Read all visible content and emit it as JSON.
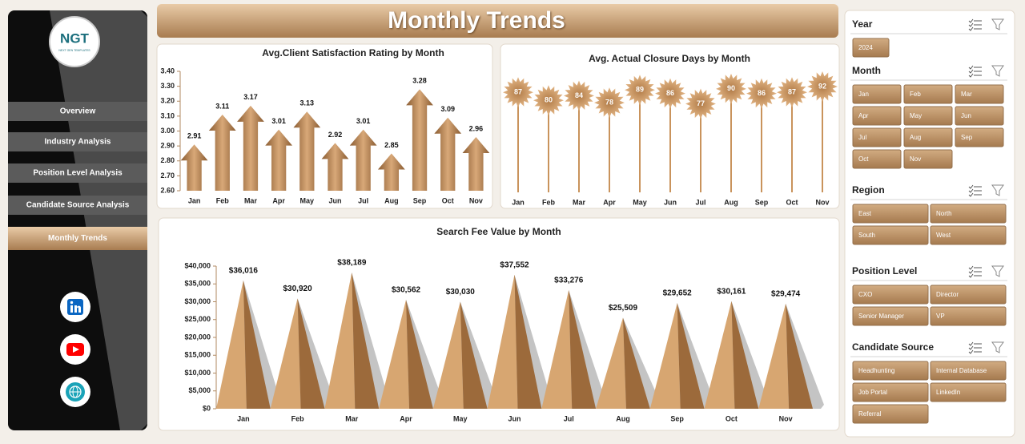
{
  "header": {
    "title": "Monthly Trends"
  },
  "logo": {
    "name": "NGT",
    "tagline": "NEXT GEN TEMPLATES"
  },
  "nav": [
    "Overview",
    "Industry Analysis",
    "Position Level Analysis",
    "Candidate Source Analysis",
    "Monthly Trends"
  ],
  "active_nav": 4,
  "slicers": [
    {
      "title": "Year",
      "items": [
        "2024"
      ]
    },
    {
      "title": "Month",
      "items": [
        "Jan",
        "Feb",
        "Mar",
        "Apr",
        "May",
        "Jun",
        "Jul",
        "Aug",
        "Sep",
        "Oct",
        "Nov"
      ]
    },
    {
      "title": "Region",
      "items": [
        "East",
        "North",
        "South",
        "West"
      ]
    },
    {
      "title": "Position Level",
      "items": [
        "CXO",
        "Director",
        "Senior Manager",
        "VP"
      ]
    },
    {
      "title": "Candidate Source",
      "items": [
        "Headhunting",
        "Internal Database",
        "Job Portal",
        "LinkedIn",
        "Referral"
      ]
    }
  ],
  "chart_data": [
    {
      "type": "bar",
      "bar_shape": "arrow",
      "title": "Avg.Client Satisfaction Rating by Month",
      "color": "#b07e4c",
      "categories": [
        "Jan",
        "Feb",
        "Mar",
        "Apr",
        "May",
        "Jun",
        "Jul",
        "Aug",
        "Sep",
        "Oct",
        "Nov"
      ],
      "values": [
        2.91,
        3.11,
        3.17,
        3.01,
        3.13,
        2.92,
        3.01,
        2.85,
        3.28,
        3.09,
        2.96
      ],
      "ylim": [
        2.6,
        3.4
      ],
      "yticks": [
        {
          "value": 2.6,
          "label": "2.60"
        },
        {
          "value": 2.7,
          "label": "2.70"
        },
        {
          "value": 2.8,
          "label": "2.80"
        },
        {
          "value": 2.9,
          "label": "2.90"
        },
        {
          "value": 3.0,
          "label": "3.00"
        },
        {
          "value": 3.1,
          "label": "3.10"
        },
        {
          "value": 3.2,
          "label": "3.20"
        },
        {
          "value": 3.3,
          "label": "3.30"
        },
        {
          "value": 3.4,
          "label": "3.40"
        }
      ]
    },
    {
      "type": "lollipop",
      "marker": "starburst",
      "title": "Avg. Actual Closure Days by Month",
      "color": "#c9935c",
      "categories": [
        "Jan",
        "Feb",
        "Mar",
        "Apr",
        "May",
        "Jun",
        "Jul",
        "Aug",
        "Sep",
        "Oct",
        "Nov"
      ],
      "values": [
        87,
        80,
        84,
        78,
        89,
        86,
        77,
        90,
        86,
        87,
        92
      ]
    },
    {
      "type": "bar",
      "bar_shape": "pyramid",
      "title": "Search Fee Value by Month",
      "color": "#b07e4c",
      "categories": [
        "Jan",
        "Feb",
        "Mar",
        "Apr",
        "May",
        "Jun",
        "Jul",
        "Aug",
        "Sep",
        "Oct",
        "Nov"
      ],
      "values": [
        36016,
        30920,
        38189,
        30562,
        30030,
        37552,
        33276,
        25509,
        29652,
        30161,
        29474
      ],
      "value_labels": [
        "$36,016",
        "$30,920",
        "$38,189",
        "$30,562",
        "$30,030",
        "$37,552",
        "$33,276",
        "$25,509",
        "$29,652",
        "$30,161",
        "$29,474"
      ],
      "ylim": [
        0,
        40000
      ],
      "yticks": [
        {
          "value": 0,
          "label": "$0"
        },
        {
          "value": 5000,
          "label": "$5,000"
        },
        {
          "value": 10000,
          "label": "$10,000"
        },
        {
          "value": 15000,
          "label": "$15,000"
        },
        {
          "value": 20000,
          "label": "$20,000"
        },
        {
          "value": 25000,
          "label": "$25,000"
        },
        {
          "value": 30000,
          "label": "$30,000"
        },
        {
          "value": 35000,
          "label": "$35,000"
        },
        {
          "value": 40000,
          "label": "$40,000"
        }
      ]
    }
  ]
}
